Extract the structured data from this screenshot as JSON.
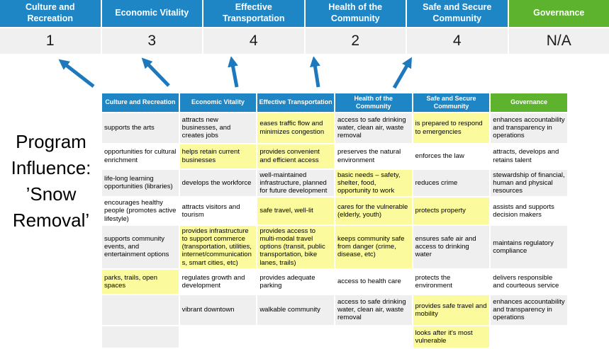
{
  "colors": {
    "header_blue": "#1F86C6",
    "header_green": "#5DB32D",
    "score_bg": "#F0F0F0",
    "row_shade": "#EFEFEF",
    "highlight_yellow": "#FBFB9E",
    "arrow_blue": "#1E79BC"
  },
  "scoreboard": {
    "columns": [
      {
        "label": "Culture and Recreation",
        "score": "1",
        "type": "blue"
      },
      {
        "label": "Economic Vitality",
        "score": "3",
        "type": "blue"
      },
      {
        "label": "Effective Transportation",
        "score": "4",
        "type": "blue"
      },
      {
        "label": "Health of the Community",
        "score": "2",
        "type": "blue"
      },
      {
        "label": "Safe and Secure Community",
        "score": "4",
        "type": "blue"
      },
      {
        "label": "Governance",
        "score": "N/A",
        "type": "green"
      }
    ]
  },
  "program_influence": {
    "text": "Program Influence: ’Snow Removal’",
    "lines": [
      "Program",
      "Influence:",
      "’Snow",
      "Removal’"
    ]
  },
  "matrix": {
    "headers": [
      {
        "label": "Culture and Recreation",
        "type": "blue"
      },
      {
        "label": "Economic Vitality",
        "type": "blue"
      },
      {
        "label": "Effective Transportation",
        "type": "blue"
      },
      {
        "label": "Health of the Community",
        "type": "blue"
      },
      {
        "label": "Safe and Secure Community",
        "type": "blue"
      },
      {
        "label": "Governance",
        "type": "green"
      }
    ],
    "rows": [
      {
        "shaded": true,
        "cells": [
          {
            "text": "supports the arts",
            "highlight": false
          },
          {
            "text": "attracts new businesses, and creates jobs",
            "highlight": false
          },
          {
            "text": "eases traffic flow and minimizes congestion",
            "highlight": true
          },
          {
            "text": "access to safe drinking water, clean air, waste removal",
            "highlight": false
          },
          {
            "text": "is prepared to respond to emergencies",
            "highlight": true
          },
          {
            "text": "enhances accountability and transparency in operations",
            "highlight": false
          }
        ]
      },
      {
        "shaded": false,
        "cells": [
          {
            "text": "opportunities for cultural enrichment",
            "highlight": false
          },
          {
            "text": "helps retain current businesses",
            "highlight": true
          },
          {
            "text": "provides convenient and efficient access",
            "highlight": true
          },
          {
            "text": "preserves the natural environment",
            "highlight": false
          },
          {
            "text": "enforces the law",
            "highlight": false
          },
          {
            "text": "attracts, develops and retains talent",
            "highlight": false
          }
        ]
      },
      {
        "shaded": true,
        "cells": [
          {
            "text": "life-long learning opportunities (libraries)",
            "highlight": false
          },
          {
            "text": "develops the workforce",
            "highlight": false
          },
          {
            "text": "well-maintained infrastructure, planned for future development",
            "highlight": false
          },
          {
            "text": "basic needs – safety, shelter, food, opportunity to work",
            "highlight": true
          },
          {
            "text": "reduces crime",
            "highlight": false
          },
          {
            "text": "stewardship of financial, human and physical resources",
            "highlight": false
          }
        ]
      },
      {
        "shaded": false,
        "cells": [
          {
            "text": "encourages healthy people (promotes active lifestyle)",
            "highlight": false
          },
          {
            "text": "attracts visitors and tourism",
            "highlight": false
          },
          {
            "text": "safe travel, well-lit",
            "highlight": true
          },
          {
            "text": "cares for the vulnerable (elderly, youth)",
            "highlight": true
          },
          {
            "text": "protects property",
            "highlight": true
          },
          {
            "text": "assists and supports decision makers",
            "highlight": false
          }
        ]
      },
      {
        "shaded": true,
        "cells": [
          {
            "text": "supports community events, and entertainment options",
            "highlight": false
          },
          {
            "text": "provides infrastructure to support commerce (transportation, utilities, internet/communications, smart cities, etc)",
            "highlight": true
          },
          {
            "text": "provides access to multi-modal travel options (transit, public transportation, bike lanes, trails)",
            "highlight": true
          },
          {
            "text": "keeps community safe from danger (crime, disease, etc)",
            "highlight": true
          },
          {
            "text": "ensures safe air and access to drinking water",
            "highlight": false
          },
          {
            "text": "maintains regulatory compliance",
            "highlight": false
          }
        ]
      },
      {
        "shaded": false,
        "cells": [
          {
            "text": "parks, trails, open spaces",
            "highlight": true
          },
          {
            "text": "regulates growth and development",
            "highlight": false
          },
          {
            "text": "provides adequate parking",
            "highlight": false
          },
          {
            "text": "access to health care",
            "highlight": false
          },
          {
            "text": "protects the environment",
            "highlight": false
          },
          {
            "text": "delivers responsible and courteous service",
            "highlight": false
          }
        ]
      },
      {
        "shaded": true,
        "cells": [
          {
            "text": "",
            "highlight": false
          },
          {
            "text": "vibrant downtown",
            "highlight": false
          },
          {
            "text": "walkable community",
            "highlight": false
          },
          {
            "text": "access to safe drinking water, clean air, waste removal",
            "highlight": false
          },
          {
            "text": "provides safe travel and mobility",
            "highlight": true
          },
          {
            "text": "enhances accountability and transparency in operations",
            "highlight": false
          }
        ]
      },
      {
        "shaded": false,
        "cells": [
          {
            "text": "",
            "highlight": false,
            "shaded": true
          },
          {
            "text": "",
            "highlight": false
          },
          {
            "text": "",
            "highlight": false
          },
          {
            "text": "",
            "highlight": false
          },
          {
            "text": "looks after it's most vulnerable",
            "highlight": true
          },
          {
            "text": "",
            "highlight": false
          }
        ]
      }
    ]
  }
}
